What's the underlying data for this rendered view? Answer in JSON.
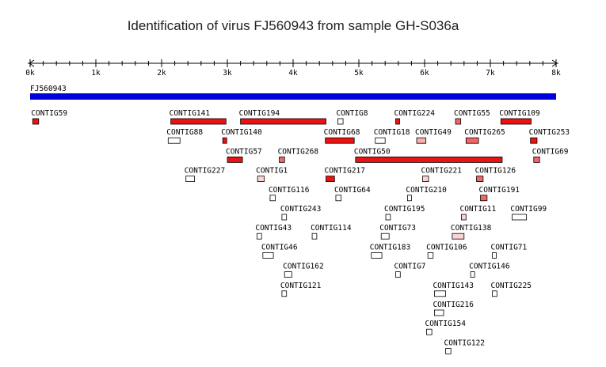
{
  "title": "Identification of virus FJ560943 from sample GH-S036a",
  "axis": {
    "min": 0,
    "max": 8000,
    "major_step": 1000,
    "minor_step": 200,
    "tick_labels": [
      "0k",
      "1k",
      "2k",
      "3k",
      "4k",
      "5k",
      "6k",
      "7k",
      "8k"
    ]
  },
  "reference": {
    "name": "FJ560943",
    "start": 0,
    "end": 8000,
    "color": "#0000dd"
  },
  "colors": {
    "strong": "#ee1111",
    "medium": "#f26666",
    "light": "#f8b0b0",
    "faint": "#fbd3d3",
    "none": "#ffffff",
    "outline": "#000000"
  },
  "contigs": [
    {
      "name": "CONTIG59",
      "start": 40,
      "end": 130,
      "row": 0,
      "shade": "strong"
    },
    {
      "name": "CONTIG141",
      "start": 2140,
      "end": 2980,
      "row": 0,
      "shade": "strong"
    },
    {
      "name": "CONTIG194",
      "start": 3200,
      "end": 4500,
      "row": 0,
      "shade": "strong"
    },
    {
      "name": "CONTIG8",
      "start": 4680,
      "end": 4760,
      "row": 0,
      "shade": "none"
    },
    {
      "name": "CONTIG224",
      "start": 5560,
      "end": 5610,
      "row": 0,
      "shade": "strong"
    },
    {
      "name": "CONTIG55",
      "start": 6470,
      "end": 6550,
      "row": 0,
      "shade": "medium"
    },
    {
      "name": "CONTIG109",
      "start": 7160,
      "end": 7620,
      "row": 0,
      "shade": "strong"
    },
    {
      "name": "CONTIG88",
      "start": 2100,
      "end": 2280,
      "row": 1,
      "shade": "none"
    },
    {
      "name": "CONTIG140",
      "start": 2930,
      "end": 2990,
      "row": 1,
      "shade": "strong"
    },
    {
      "name": "CONTIG68",
      "start": 4490,
      "end": 4930,
      "row": 1,
      "shade": "strong"
    },
    {
      "name": "CONTIG18",
      "start": 5250,
      "end": 5400,
      "row": 1,
      "shade": "none"
    },
    {
      "name": "CONTIG49",
      "start": 5880,
      "end": 6020,
      "row": 1,
      "shade": "light"
    },
    {
      "name": "CONTIG265",
      "start": 6630,
      "end": 6820,
      "row": 1,
      "shade": "medium"
    },
    {
      "name": "CONTIG253",
      "start": 7610,
      "end": 7710,
      "row": 1,
      "shade": "strong"
    },
    {
      "name": "CONTIG57",
      "start": 3000,
      "end": 3230,
      "row": 2,
      "shade": "strong"
    },
    {
      "name": "CONTIG268",
      "start": 3790,
      "end": 3870,
      "row": 2,
      "shade": "medium"
    },
    {
      "name": "CONTIG50",
      "start": 4950,
      "end": 7180,
      "row": 2,
      "shade": "strong"
    },
    {
      "name": "CONTIG69",
      "start": 7660,
      "end": 7750,
      "row": 2,
      "shade": "medium"
    },
    {
      "name": "CONTIG227",
      "start": 2370,
      "end": 2500,
      "row": 3,
      "shade": "none"
    },
    {
      "name": "CONTIG1",
      "start": 3460,
      "end": 3560,
      "row": 3,
      "shade": "faint"
    },
    {
      "name": "CONTIG217",
      "start": 4500,
      "end": 4630,
      "row": 3,
      "shade": "strong"
    },
    {
      "name": "CONTIG221",
      "start": 5970,
      "end": 6060,
      "row": 3,
      "shade": "faint"
    },
    {
      "name": "CONTIG126",
      "start": 6790,
      "end": 6890,
      "row": 3,
      "shade": "medium"
    },
    {
      "name": "CONTIG116",
      "start": 3650,
      "end": 3730,
      "row": 4,
      "shade": "none"
    },
    {
      "name": "CONTIG64",
      "start": 4650,
      "end": 4730,
      "row": 4,
      "shade": "none"
    },
    {
      "name": "CONTIG210",
      "start": 5740,
      "end": 5800,
      "row": 4,
      "shade": "none"
    },
    {
      "name": "CONTIG191",
      "start": 6850,
      "end": 6950,
      "row": 4,
      "shade": "medium"
    },
    {
      "name": "CONTIG243",
      "start": 3830,
      "end": 3900,
      "row": 5,
      "shade": "none"
    },
    {
      "name": "CONTIG195",
      "start": 5410,
      "end": 5480,
      "row": 5,
      "shade": "none"
    },
    {
      "name": "CONTIG11",
      "start": 6560,
      "end": 6630,
      "row": 5,
      "shade": "faint"
    },
    {
      "name": "CONTIG99",
      "start": 7330,
      "end": 7550,
      "row": 5,
      "shade": "none"
    },
    {
      "name": "CONTIG43",
      "start": 3450,
      "end": 3520,
      "row": 6,
      "shade": "none"
    },
    {
      "name": "CONTIG114",
      "start": 4290,
      "end": 4360,
      "row": 6,
      "shade": "none"
    },
    {
      "name": "CONTIG73",
      "start": 5340,
      "end": 5460,
      "row": 6,
      "shade": "none"
    },
    {
      "name": "CONTIG138",
      "start": 6420,
      "end": 6600,
      "row": 6,
      "shade": "faint"
    },
    {
      "name": "CONTIG46",
      "start": 3540,
      "end": 3700,
      "row": 7,
      "shade": "none"
    },
    {
      "name": "CONTIG183",
      "start": 5190,
      "end": 5350,
      "row": 7,
      "shade": "none"
    },
    {
      "name": "CONTIG106",
      "start": 6050,
      "end": 6130,
      "row": 7,
      "shade": "none"
    },
    {
      "name": "CONTIG71",
      "start": 7030,
      "end": 7080,
      "row": 7,
      "shade": "none"
    },
    {
      "name": "CONTIG162",
      "start": 3870,
      "end": 3980,
      "row": 8,
      "shade": "none"
    },
    {
      "name": "CONTIG7",
      "start": 5560,
      "end": 5630,
      "row": 8,
      "shade": "none"
    },
    {
      "name": "CONTIG146",
      "start": 6700,
      "end": 6760,
      "row": 8,
      "shade": "none"
    },
    {
      "name": "CONTIG121",
      "start": 3830,
      "end": 3900,
      "row": 9,
      "shade": "none"
    },
    {
      "name": "CONTIG143",
      "start": 6150,
      "end": 6320,
      "row": 9,
      "shade": "none"
    },
    {
      "name": "CONTIG225",
      "start": 7030,
      "end": 7100,
      "row": 9,
      "shade": "none"
    },
    {
      "name": "CONTIG216",
      "start": 6150,
      "end": 6290,
      "row": 10,
      "shade": "none"
    },
    {
      "name": "CONTIG154",
      "start": 6030,
      "end": 6110,
      "row": 11,
      "shade": "none"
    },
    {
      "name": "CONTIG122",
      "start": 6320,
      "end": 6400,
      "row": 12,
      "shade": "none"
    }
  ]
}
